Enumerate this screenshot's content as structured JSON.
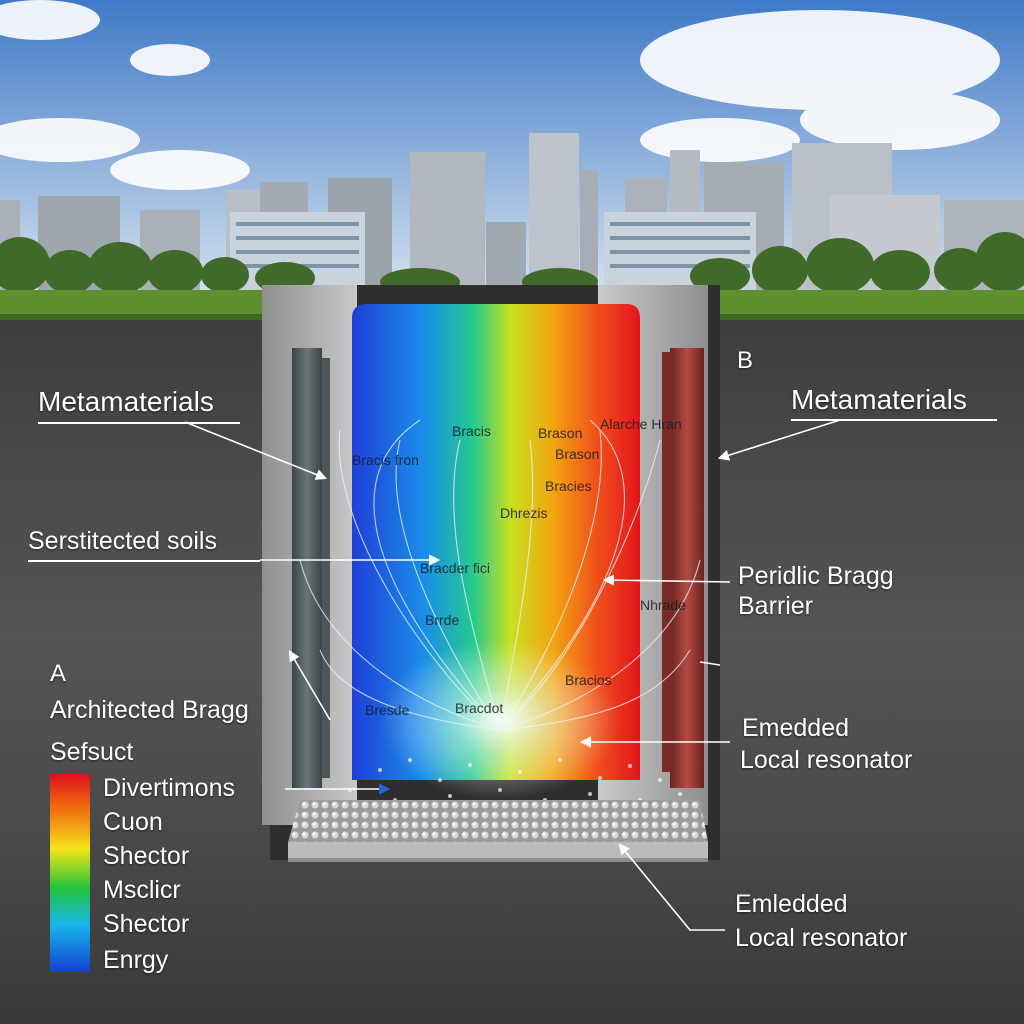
{
  "labels": {
    "metamaterials_left": "Metamaterials",
    "metamaterials_right": "Metamaterials",
    "panel_b": "B",
    "serstitected": "Serstitected soils",
    "periodic_line1": "Peridlic Bragg",
    "periodic_line2": "Barrier",
    "panel_a": "A",
    "architected": "Architected Bragg",
    "sefsuct": "Sefsuct",
    "embedded_top_line1": "Emedded",
    "embedded_top_line2": "Local resonator",
    "embedded_bottom_line1": "Emledded",
    "embedded_bottom_line2": "Local resonator"
  },
  "legend": {
    "items": [
      "Divertimons",
      "Cuon",
      "Shector",
      "Msclicr",
      "Shector",
      "Enrgy"
    ],
    "colors": [
      "#e0101a",
      "#f27b10",
      "#f3e51a",
      "#22c23c",
      "#17b6e8",
      "#1540d6"
    ]
  },
  "inner_text": [
    "Bracis",
    "Bracis fron",
    "Brason",
    "Brason",
    "Alarche Hran",
    "Dhrezis",
    "Bracder fici",
    "Brrde",
    "Bracies",
    "Nhrade",
    "Bracios",
    "Bracdot",
    "Bresde"
  ],
  "colors": {
    "sky_top": "#3f79c7",
    "sky_bottom": "#d7e4ef",
    "soil": "#4a4a4a",
    "grass": "#5f8f2e",
    "concrete": "#b8b8b6",
    "rod": "#9a3a34"
  }
}
